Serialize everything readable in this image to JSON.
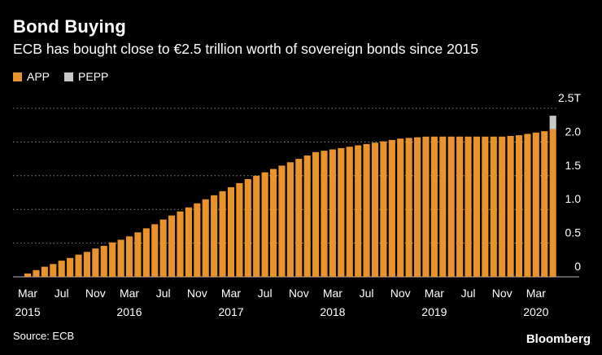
{
  "title": "Bond Buying",
  "subtitle": "ECB has bought close to €2.5 trillion worth of sovereign bonds since 2015",
  "source": "Source: ECB",
  "brand": "Bloomberg",
  "colors": {
    "app": "#e8932b",
    "pepp": "#c8c8c8",
    "grid": "#8a8a8a",
    "background": "#000000"
  },
  "chart_data": {
    "type": "bar",
    "stacked": true,
    "unit": "trillion EUR",
    "ylim": [
      0,
      2.5
    ],
    "yticks": [
      "0",
      "0.5",
      "1.0",
      "1.5",
      "2.0",
      "2.5T"
    ],
    "grid": "horizontal dotted",
    "legend_position": "top-left",
    "x": [
      "2015-03",
      "2015-04",
      "2015-05",
      "2015-06",
      "2015-07",
      "2015-08",
      "2015-09",
      "2015-10",
      "2015-11",
      "2015-12",
      "2016-01",
      "2016-02",
      "2016-03",
      "2016-04",
      "2016-05",
      "2016-06",
      "2016-07",
      "2016-08",
      "2016-09",
      "2016-10",
      "2016-11",
      "2016-12",
      "2017-01",
      "2017-02",
      "2017-03",
      "2017-04",
      "2017-05",
      "2017-06",
      "2017-07",
      "2017-08",
      "2017-09",
      "2017-10",
      "2017-11",
      "2017-12",
      "2018-01",
      "2018-02",
      "2018-03",
      "2018-04",
      "2018-05",
      "2018-06",
      "2018-07",
      "2018-08",
      "2018-09",
      "2018-10",
      "2018-11",
      "2018-12",
      "2019-01",
      "2019-02",
      "2019-03",
      "2019-04",
      "2019-05",
      "2019-06",
      "2019-07",
      "2019-08",
      "2019-09",
      "2019-10",
      "2019-11",
      "2019-12",
      "2020-01",
      "2020-02",
      "2020-03",
      "2020-04",
      "2020-05"
    ],
    "x_tick_labels": [
      {
        "month": "Mar",
        "year": "2015"
      },
      {
        "month": "Jul",
        "year": ""
      },
      {
        "month": "Nov",
        "year": ""
      },
      {
        "month": "Mar",
        "year": "2016"
      },
      {
        "month": "Jul",
        "year": ""
      },
      {
        "month": "Nov",
        "year": ""
      },
      {
        "month": "Mar",
        "year": "2017"
      },
      {
        "month": "Jul",
        "year": ""
      },
      {
        "month": "Nov",
        "year": ""
      },
      {
        "month": "Mar",
        "year": "2018"
      },
      {
        "month": "Jul",
        "year": ""
      },
      {
        "month": "Nov",
        "year": ""
      },
      {
        "month": "Mar",
        "year": "2019"
      },
      {
        "month": "Jul",
        "year": ""
      },
      {
        "month": "Nov",
        "year": ""
      },
      {
        "month": "Mar",
        "year": "2020"
      }
    ],
    "x_tick_index": [
      0,
      4,
      8,
      12,
      16,
      20,
      24,
      28,
      32,
      36,
      40,
      44,
      48,
      52,
      56,
      60
    ],
    "series": [
      {
        "name": "APP",
        "color": "#e8932b",
        "values": [
          0.05,
          0.1,
          0.15,
          0.19,
          0.24,
          0.28,
          0.33,
          0.37,
          0.42,
          0.46,
          0.51,
          0.55,
          0.6,
          0.66,
          0.72,
          0.78,
          0.85,
          0.91,
          0.97,
          1.03,
          1.09,
          1.15,
          1.21,
          1.27,
          1.33,
          1.39,
          1.45,
          1.5,
          1.55,
          1.6,
          1.65,
          1.7,
          1.75,
          1.8,
          1.85,
          1.87,
          1.89,
          1.91,
          1.93,
          1.95,
          1.97,
          1.99,
          2.01,
          2.03,
          2.05,
          2.06,
          2.07,
          2.08,
          2.08,
          2.08,
          2.08,
          2.08,
          2.08,
          2.08,
          2.08,
          2.08,
          2.08,
          2.09,
          2.1,
          2.12,
          2.14,
          2.16,
          2.19
        ]
      },
      {
        "name": "PEPP",
        "color": "#c8c8c8",
        "values": [
          0,
          0,
          0,
          0,
          0,
          0,
          0,
          0,
          0,
          0,
          0,
          0,
          0,
          0,
          0,
          0,
          0,
          0,
          0,
          0,
          0,
          0,
          0,
          0,
          0,
          0,
          0,
          0,
          0,
          0,
          0,
          0,
          0,
          0,
          0,
          0,
          0,
          0,
          0,
          0,
          0,
          0,
          0,
          0,
          0,
          0,
          0,
          0,
          0,
          0,
          0,
          0,
          0,
          0,
          0,
          0,
          0,
          0,
          0,
          0,
          0,
          0,
          0.2
        ]
      }
    ]
  }
}
